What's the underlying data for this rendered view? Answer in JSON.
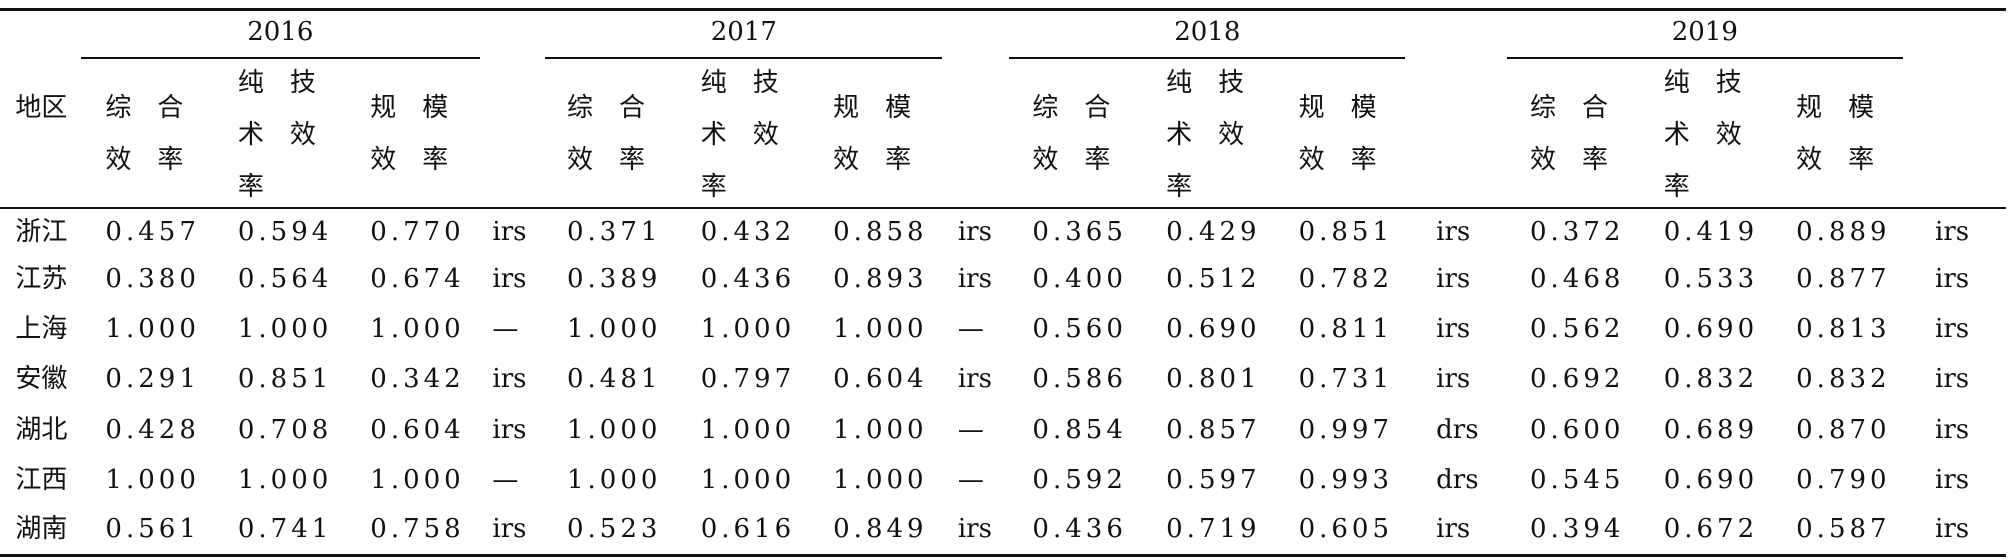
{
  "table": {
    "region_header": "地区",
    "groups": [
      {
        "year": "2016",
        "headers": [
          "综合效率",
          "纯技术效率",
          "规模效率"
        ]
      },
      {
        "year": "2017",
        "headers": [
          "综合效率",
          "纯技术效率",
          "规模效率"
        ]
      },
      {
        "year": "2018",
        "headers": [
          "综合效率",
          "纯技术效率",
          "规模效率"
        ]
      },
      {
        "year": "2019",
        "headers": [
          "综合效率",
          "纯技术效率",
          "规模效率"
        ]
      }
    ],
    "rows": [
      {
        "region": "浙江",
        "values": [
          "0.457",
          "0.594",
          "0.770",
          "irs",
          "0.371",
          "0.432",
          "0.858",
          "irs",
          "0.365",
          "0.429",
          "0.851",
          "irs",
          "0.372",
          "0.419",
          "0.889",
          "irs"
        ]
      },
      {
        "region": "江苏",
        "values": [
          "0.380",
          "0.564",
          "0.674",
          "irs",
          "0.389",
          "0.436",
          "0.893",
          "irs",
          "0.400",
          "0.512",
          "0.782",
          "irs",
          "0.468",
          "0.533",
          "0.877",
          "irs"
        ]
      },
      {
        "region": "上海",
        "values": [
          "1.000",
          "1.000",
          "1.000",
          "—",
          "1.000",
          "1.000",
          "1.000",
          "—",
          "0.560",
          "0.690",
          "0.811",
          "irs",
          "0.562",
          "0.690",
          "0.813",
          "irs"
        ]
      },
      {
        "region": "安徽",
        "values": [
          "0.291",
          "0.851",
          "0.342",
          "irs",
          "0.481",
          "0.797",
          "0.604",
          "irs",
          "0.586",
          "0.801",
          "0.731",
          "irs",
          "0.692",
          "0.832",
          "0.832",
          "irs"
        ]
      },
      {
        "region": "湖北",
        "values": [
          "0.428",
          "0.708",
          "0.604",
          "irs",
          "1.000",
          "1.000",
          "1.000",
          "—",
          "0.854",
          "0.857",
          "0.997",
          "drs",
          "0.600",
          "0.689",
          "0.870",
          "irs"
        ]
      },
      {
        "region": "江西",
        "values": [
          "1.000",
          "1.000",
          "1.000",
          "—",
          "1.000",
          "1.000",
          "1.000",
          "—",
          "0.592",
          "0.597",
          "0.993",
          "drs",
          "0.545",
          "0.690",
          "0.790",
          "irs"
        ]
      },
      {
        "region": "湖南",
        "values": [
          "0.561",
          "0.741",
          "0.758",
          "irs",
          "0.523",
          "0.616",
          "0.849",
          "irs",
          "0.436",
          "0.719",
          "0.605",
          "irs",
          "0.394",
          "0.672",
          "0.587",
          "irs"
        ]
      }
    ]
  }
}
